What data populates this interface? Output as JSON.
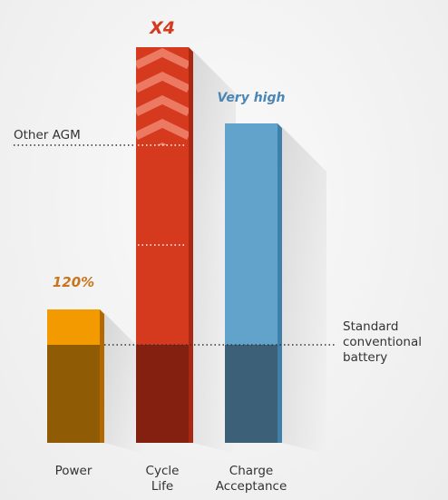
{
  "bars": [
    {
      "category": "Power",
      "label": "120%"
    },
    {
      "category": "Cycle Life",
      "label": "X4"
    },
    {
      "category": "Charge Acceptance",
      "label": "Very high"
    }
  ],
  "references": {
    "top": "Other AGM",
    "base": "Standard conventional battery"
  }
}
